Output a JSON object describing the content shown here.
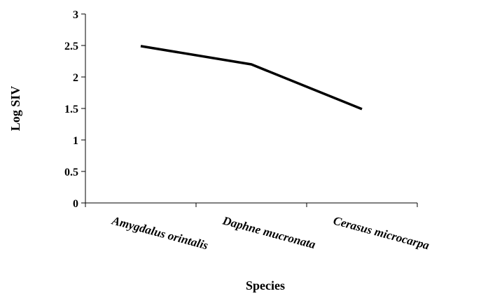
{
  "chart_data": {
    "type": "line",
    "title": "",
    "xlabel": "Species",
    "ylabel": "Log SIV",
    "categories": [
      "Amygdalus orintalis",
      "Daphne mucronata",
      "Cerasus microcarpa"
    ],
    "series": [
      {
        "values": [
          2.49,
          2.2,
          1.49
        ],
        "color": "#000000"
      }
    ],
    "ylim": [
      0,
      3
    ],
    "yticks": [
      "0",
      "0.5",
      "1",
      "1.5",
      "2",
      "2.5",
      "3"
    ],
    "grid": false,
    "legend": "none"
  }
}
